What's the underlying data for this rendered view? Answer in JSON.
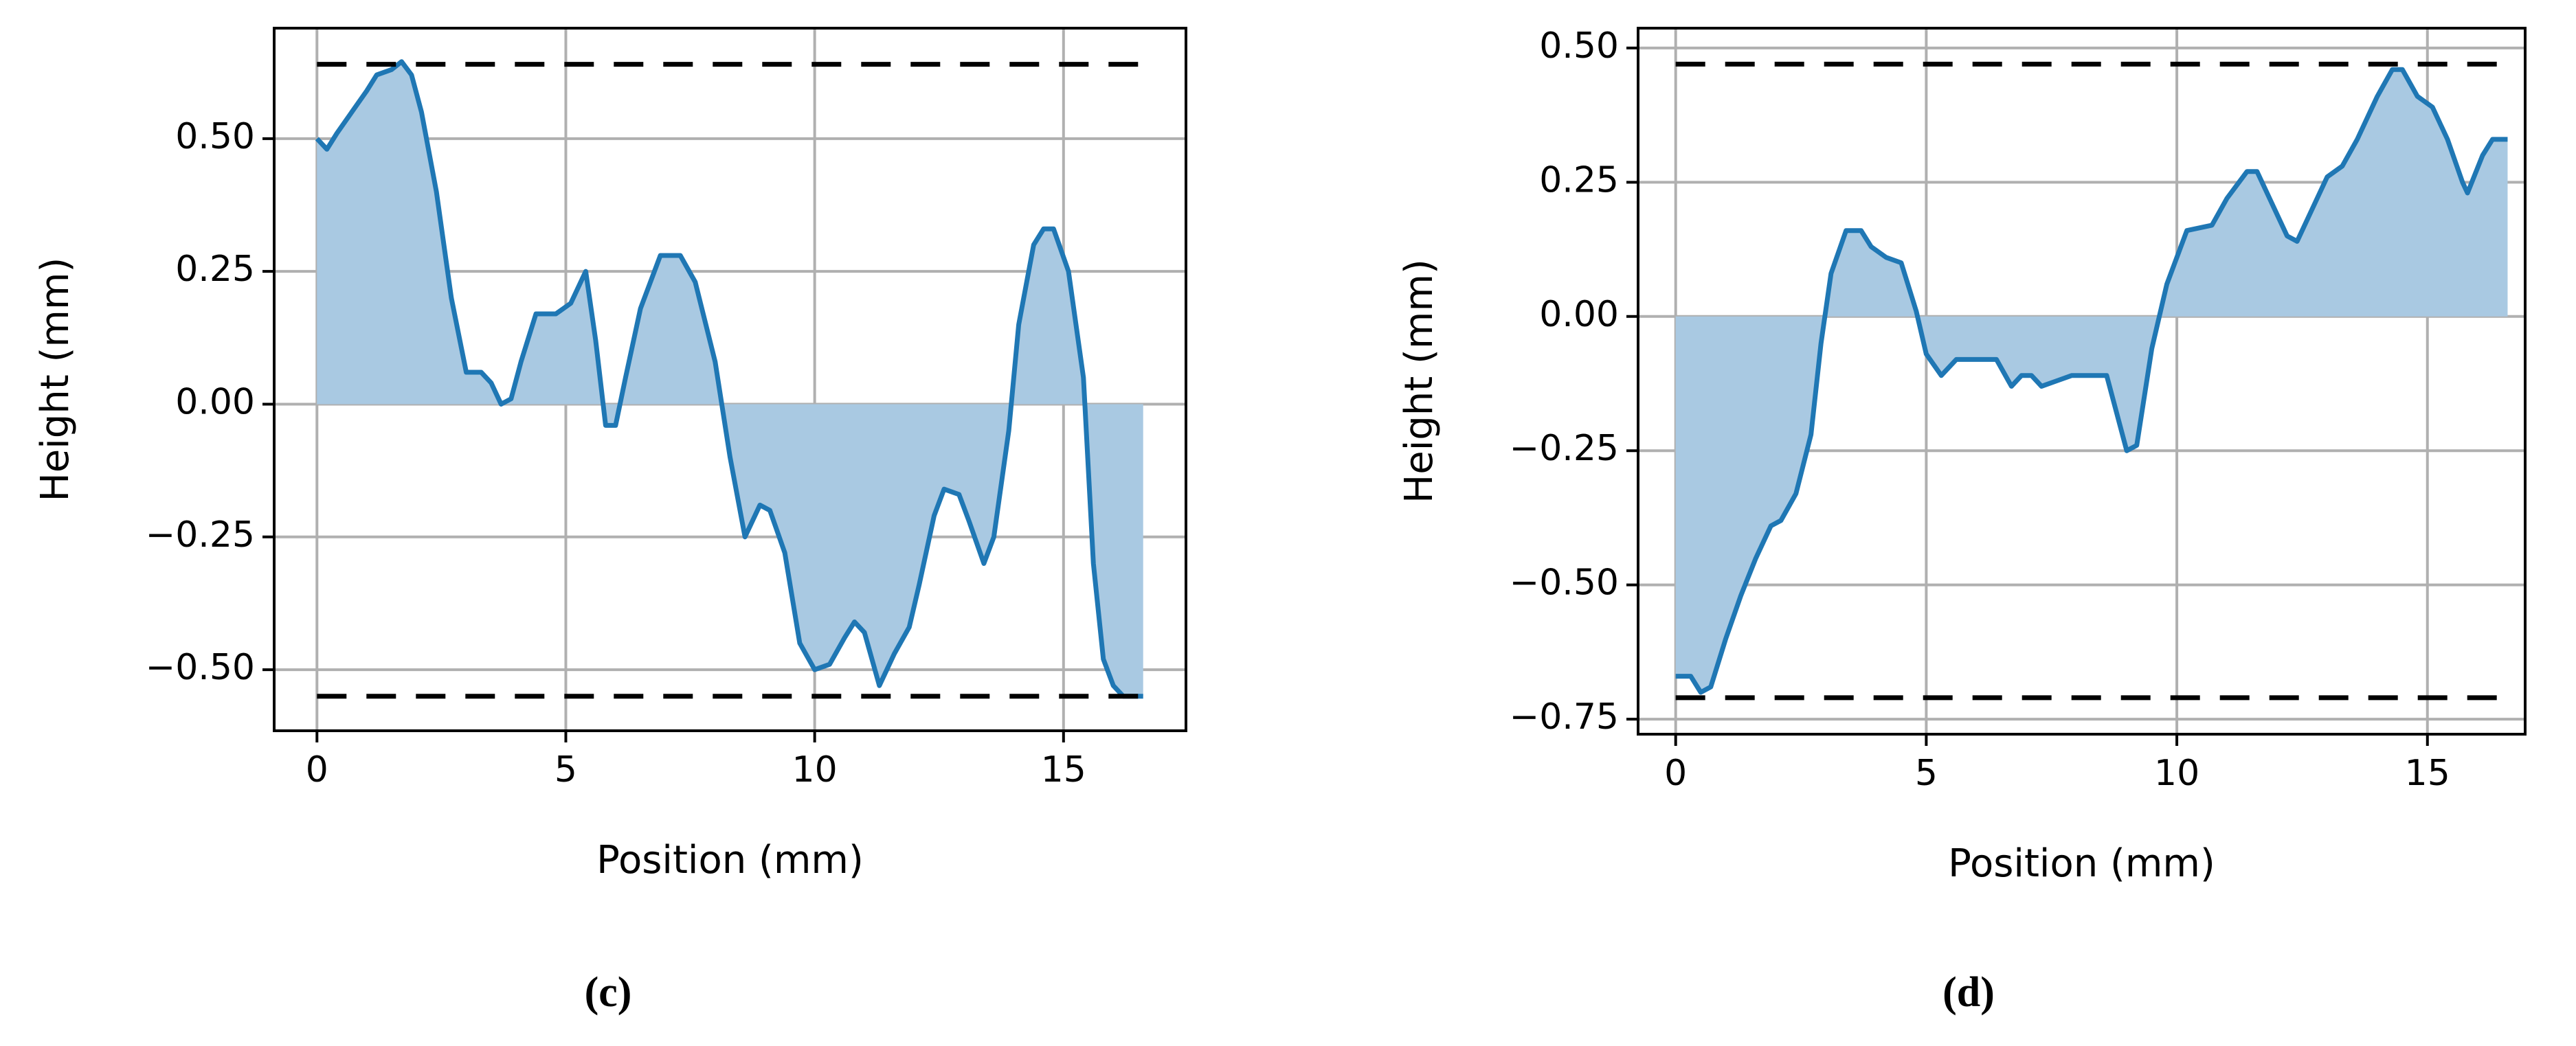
{
  "chart_data": [
    {
      "type": "line",
      "xlabel": "Position (mm)",
      "ylabel": "Height (mm)",
      "caption": "(c)",
      "xlim": [
        -0.86,
        17.46
      ],
      "ylim": [
        -0.615,
        0.708
      ],
      "xticks": [
        0,
        5,
        10,
        15
      ],
      "yticks": [
        {
          "value": -0.5,
          "label": "−0.50"
        },
        {
          "value": -0.25,
          "label": "−0.25"
        },
        {
          "value": 0,
          "label": "0.00"
        },
        {
          "value": 0.25,
          "label": "0.25"
        },
        {
          "value": 0.5,
          "label": "0.50"
        }
      ],
      "grid": true,
      "fill": true,
      "fill_color": "#a9c9e2",
      "x": [
        0,
        0.2,
        0.4,
        0.7,
        1.0,
        1.2,
        1.5,
        1.7,
        1.9,
        2.1,
        2.4,
        2.7,
        3.0,
        3.3,
        3.5,
        3.7,
        3.9,
        4.1,
        4.4,
        4.8,
        5.1,
        5.4,
        5.6,
        5.8,
        6.0,
        6.2,
        6.5,
        6.9,
        7.3,
        7.6,
        8.0,
        8.3,
        8.6,
        8.9,
        9.1,
        9.4,
        9.7,
        10.0,
        10.3,
        10.6,
        10.8,
        11.0,
        11.3,
        11.6,
        11.9,
        12.1,
        12.4,
        12.6,
        12.9,
        13.1,
        13.4,
        13.6,
        13.9,
        14.1,
        14.4,
        14.6,
        14.8,
        15.1,
        15.4,
        15.6,
        15.8,
        16.0,
        16.2,
        16.6
      ],
      "series": [
        {
          "color": "#1f77b4",
          "values": [
            0.5,
            0.48,
            0.51,
            0.55,
            0.59,
            0.62,
            0.63,
            0.645,
            0.62,
            0.55,
            0.4,
            0.2,
            0.06,
            0.06,
            0.04,
            0.0,
            0.01,
            0.08,
            0.17,
            0.17,
            0.19,
            0.25,
            0.12,
            -0.04,
            -0.04,
            0.05,
            0.18,
            0.28,
            0.28,
            0.23,
            0.08,
            -0.1,
            -0.25,
            -0.19,
            -0.2,
            -0.28,
            -0.45,
            -0.5,
            -0.49,
            -0.44,
            -0.41,
            -0.43,
            -0.53,
            -0.47,
            -0.42,
            -0.34,
            -0.21,
            -0.16,
            -0.17,
            -0.22,
            -0.3,
            -0.25,
            -0.05,
            0.15,
            0.3,
            0.33,
            0.33,
            0.25,
            0.05,
            -0.3,
            -0.48,
            -0.53,
            -0.55,
            -0.55
          ]
        }
      ],
      "hlines": [
        0.64,
        -0.55
      ],
      "hline_color": "#000000"
    },
    {
      "type": "line",
      "xlabel": "Position (mm)",
      "ylabel": "Height (mm)",
      "caption": "(d)",
      "xlim": [
        -0.75,
        16.95
      ],
      "ylim": [
        -0.778,
        0.537
      ],
      "xticks": [
        0,
        5,
        10,
        15
      ],
      "yticks": [
        {
          "value": -0.75,
          "label": "−0.75"
        },
        {
          "value": -0.5,
          "label": "−0.50"
        },
        {
          "value": -0.25,
          "label": "−0.25"
        },
        {
          "value": 0,
          "label": "0.00"
        },
        {
          "value": 0.25,
          "label": "0.25"
        },
        {
          "value": 0.5,
          "label": "0.50"
        }
      ],
      "grid": true,
      "fill": true,
      "fill_color": "#a9c9e2",
      "x": [
        0,
        0.3,
        0.5,
        0.7,
        1.0,
        1.3,
        1.6,
        1.9,
        2.1,
        2.4,
        2.7,
        2.9,
        3.1,
        3.4,
        3.7,
        3.9,
        4.2,
        4.5,
        4.8,
        5.0,
        5.3,
        5.6,
        6.0,
        6.4,
        6.7,
        6.9,
        7.1,
        7.3,
        7.6,
        7.9,
        8.6,
        8.8,
        9.0,
        9.2,
        9.5,
        9.8,
        10.2,
        10.7,
        11.0,
        11.4,
        11.6,
        11.9,
        12.2,
        12.4,
        12.7,
        13.0,
        13.3,
        13.6,
        14.0,
        14.3,
        14.5,
        14.8,
        15.1,
        15.4,
        15.7,
        15.8,
        16.1,
        16.3,
        16.6
      ],
      "series": [
        {
          "color": "#1f77b4",
          "values": [
            -0.67,
            -0.67,
            -0.7,
            -0.69,
            -0.6,
            -0.52,
            -0.45,
            -0.39,
            -0.38,
            -0.33,
            -0.22,
            -0.05,
            0.08,
            0.16,
            0.16,
            0.13,
            0.11,
            0.1,
            0.01,
            -0.07,
            -0.11,
            -0.08,
            -0.08,
            -0.08,
            -0.13,
            -0.11,
            -0.11,
            -0.13,
            -0.12,
            -0.11,
            -0.11,
            -0.18,
            -0.25,
            -0.24,
            -0.06,
            0.06,
            0.16,
            0.17,
            0.22,
            0.27,
            0.27,
            0.21,
            0.15,
            0.14,
            0.2,
            0.26,
            0.28,
            0.33,
            0.41,
            0.46,
            0.46,
            0.41,
            0.39,
            0.33,
            0.25,
            0.23,
            0.3,
            0.33,
            0.33
          ]
        }
      ],
      "hlines": [
        0.47,
        -0.71
      ],
      "hline_color": "#000000"
    }
  ]
}
